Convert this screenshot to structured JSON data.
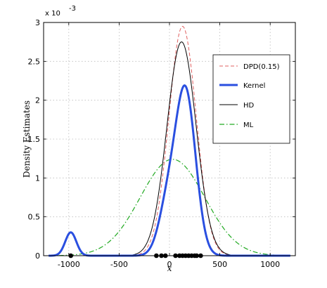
{
  "chart_data": {
    "type": "line",
    "title": "",
    "xlabel": "x",
    "ylabel": "Density Estimates",
    "y_exponent_label": "x 10",
    "y_exponent_power": "-3",
    "xlim": [
      -1250,
      1250
    ],
    "ylim": [
      0,
      3
    ],
    "xticks": [
      -1000,
      -500,
      0,
      500,
      1000
    ],
    "xtick_labels": [
      "-1000",
      "-500",
      "0",
      "500",
      "1000"
    ],
    "yticks": [
      0,
      0.5,
      1,
      1.5,
      2,
      2.5,
      3
    ],
    "ytick_labels": [
      "0",
      "0.5",
      "1",
      "1.5",
      "2",
      "2.5",
      "3"
    ],
    "grid": true,
    "legend_position": "right",
    "colors": {
      "dpd": "#e06060",
      "kernel": "#2a4fe0",
      "hd": "#000000",
      "ml": "#22aa22"
    },
    "series": [
      {
        "name": "DPD(0.15)",
        "style": "dashed",
        "kind": "gaussian",
        "mean": 130,
        "sd": 136,
        "peak": 2.95
      },
      {
        "name": "Kernel",
        "style": "solid-thick",
        "kind": "mixture",
        "components": [
          {
            "mean": -980,
            "sd": 55,
            "peak": 0.3
          },
          {
            "mean": 160,
            "sd": 100,
            "peak": 2.1
          },
          {
            "mean": -20,
            "sd": 90,
            "peak": 0.6
          }
        ]
      },
      {
        "name": "HD",
        "style": "solid-thin",
        "kind": "gaussian",
        "mean": 120,
        "sd": 145,
        "peak": 2.75
      },
      {
        "name": "ML",
        "style": "dash-dot",
        "kind": "gaussian",
        "mean": 30,
        "sd": 320,
        "peak": 1.24
      }
    ],
    "data_points_x": [
      -130,
      -80,
      -40,
      60,
      100,
      130,
      160,
      190,
      220,
      250,
      270,
      310
    ]
  }
}
